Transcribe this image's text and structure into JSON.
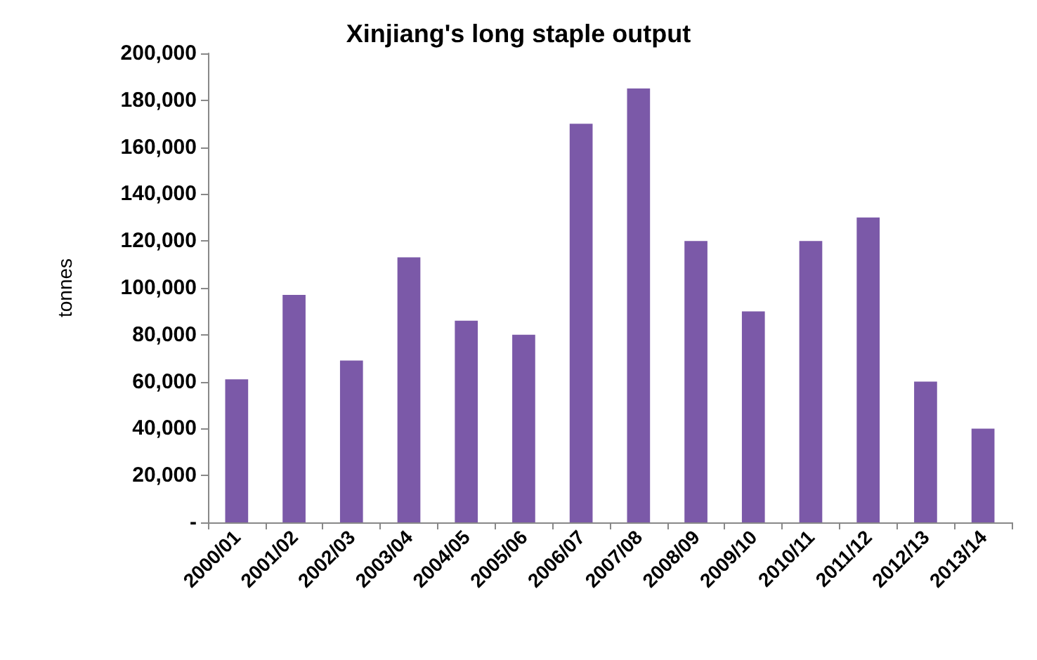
{
  "chart_data": {
    "type": "bar",
    "title": "Xinjiang's long staple output",
    "ylabel": "tonnes",
    "categories": [
      "2000/01",
      "2001/02",
      "2002/03",
      "2003/04",
      "2004/05",
      "2005/06",
      "2006/07",
      "2007/08",
      "2008/09",
      "2009/10",
      "2010/11",
      "2011/12",
      "2012/13",
      "2013/14"
    ],
    "values": [
      61000,
      97000,
      69000,
      113000,
      86000,
      80000,
      170000,
      185000,
      120000,
      90000,
      120000,
      130000,
      60000,
      40000
    ],
    "color": "#7b59a8",
    "ylim": [
      0,
      200000
    ],
    "yticks": [
      {
        "value": 0,
        "label": "-"
      },
      {
        "value": 20000,
        "label": "20,000"
      },
      {
        "value": 40000,
        "label": "40,000"
      },
      {
        "value": 60000,
        "label": "60,000"
      },
      {
        "value": 80000,
        "label": "80,000"
      },
      {
        "value": 100000,
        "label": "100,000"
      },
      {
        "value": 120000,
        "label": "120,000"
      },
      {
        "value": 140000,
        "label": "140,000"
      },
      {
        "value": 160000,
        "label": "160,000"
      },
      {
        "value": 180000,
        "label": "180,000"
      },
      {
        "value": 200000,
        "label": "200,000"
      }
    ],
    "grid": false
  }
}
